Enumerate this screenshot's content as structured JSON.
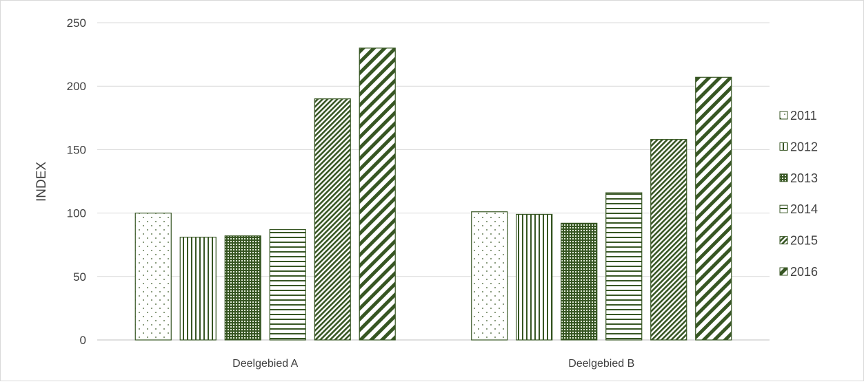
{
  "chart_data": {
    "type": "bar",
    "title": "",
    "xlabel": "",
    "ylabel": "INDEX",
    "ylim": [
      0,
      250
    ],
    "yticks": [
      0,
      50,
      100,
      150,
      200,
      250
    ],
    "grid": true,
    "legend_position": "right",
    "categories": [
      "Deelgebied A",
      "Deelgebied B"
    ],
    "series": [
      {
        "name": "2011",
        "pattern": "dots",
        "values": [
          100,
          101
        ]
      },
      {
        "name": "2012",
        "pattern": "vertical",
        "values": [
          81,
          99
        ]
      },
      {
        "name": "2013",
        "pattern": "dense-grid",
        "values": [
          82,
          92
        ]
      },
      {
        "name": "2014",
        "pattern": "horizontal",
        "values": [
          87,
          116
        ]
      },
      {
        "name": "2015",
        "pattern": "dense-diagonal",
        "values": [
          190,
          158
        ]
      },
      {
        "name": "2016",
        "pattern": "wide-diagonal",
        "values": [
          230,
          207
        ]
      }
    ],
    "colors": {
      "bar_stroke": "#375623",
      "pattern": "#375623",
      "grid": "#d9d9d9",
      "text": "#404040"
    }
  }
}
